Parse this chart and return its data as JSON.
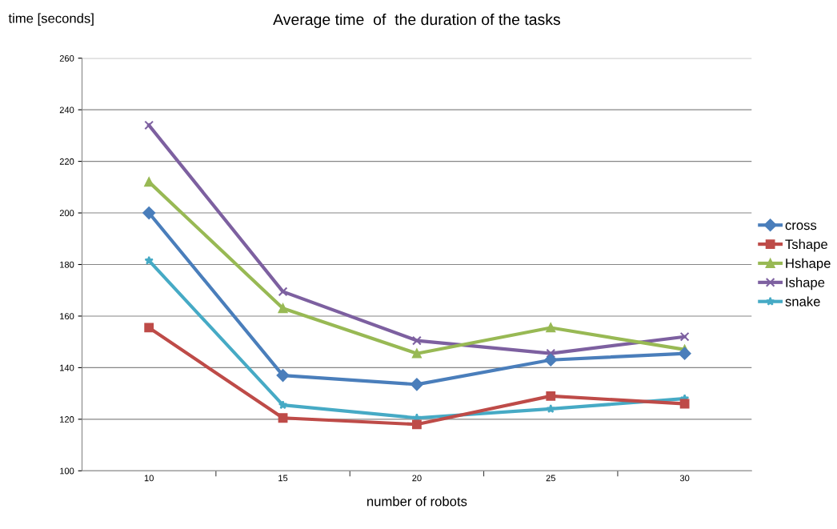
{
  "chart_data": {
    "type": "line",
    "title": "Average time  of  the duration of the tasks",
    "xlabel": "number of robots",
    "ylabel": "time [seconds]",
    "categories": [
      "10",
      "15",
      "20",
      "25",
      "30"
    ],
    "series": [
      {
        "name": "cross",
        "color": "#4a7ebb",
        "marker": "diamond",
        "values": [
          200,
          137,
          133.5,
          143,
          145.5
        ]
      },
      {
        "name": "Tshape",
        "color": "#be4b48",
        "marker": "square",
        "values": [
          155.5,
          120.5,
          118,
          129,
          126
        ]
      },
      {
        "name": "Hshape",
        "color": "#98b954",
        "marker": "triangle",
        "values": [
          212,
          163,
          145.5,
          155.5,
          147
        ]
      },
      {
        "name": "Ishape",
        "color": "#7d60a0",
        "marker": "cross",
        "values": [
          234,
          169.5,
          150.5,
          145.5,
          152
        ]
      },
      {
        "name": "snake",
        "color": "#46aac5",
        "marker": "star",
        "values": [
          181.5,
          125.5,
          120.5,
          124,
          128
        ]
      }
    ],
    "ylim": [
      100,
      260
    ],
    "yticks": [
      100,
      120,
      140,
      160,
      180,
      200,
      220,
      240,
      260
    ],
    "grid": "y",
    "legend": "right",
    "line_style": "solid"
  }
}
